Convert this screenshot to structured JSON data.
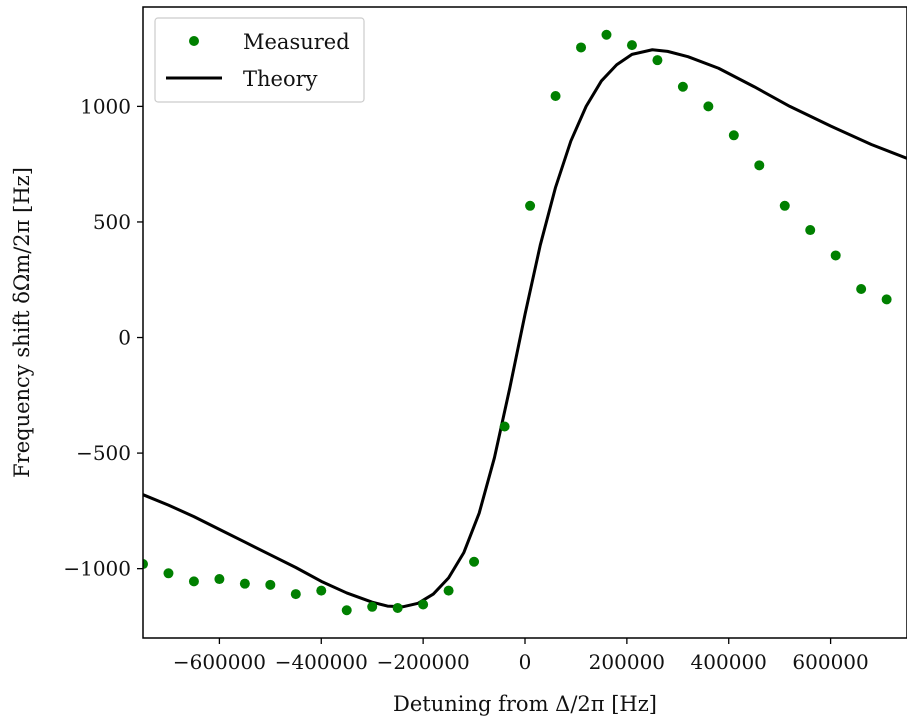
{
  "chart_data": {
    "type": "scatter",
    "title": "",
    "xlabel": "Detuning from Δ/2π [Hz]",
    "ylabel": "Frequency shift δΩm/2π [Hz]",
    "xlim": [
      -750000,
      750000
    ],
    "ylim": [
      -1300,
      1430
    ],
    "x_ticks": [
      -600000,
      -400000,
      -200000,
      0,
      200000,
      400000,
      600000
    ],
    "x_tick_labels": [
      "−600000",
      "−400000",
      "−200000",
      "0",
      "200000",
      "400000",
      "600000"
    ],
    "y_ticks": [
      -1000,
      -500,
      0,
      500,
      1000
    ],
    "y_tick_labels": [
      "−1000",
      "−500",
      "0",
      "500",
      "1000"
    ],
    "grid": false,
    "legend_position": "top-left",
    "series": [
      {
        "name": "Measured",
        "kind": "scatter",
        "color": "#008000",
        "points": [
          [
            -750000,
            -980
          ],
          [
            -700000,
            -1020
          ],
          [
            -650000,
            -1055
          ],
          [
            -600000,
            -1045
          ],
          [
            -550000,
            -1065
          ],
          [
            -500000,
            -1070
          ],
          [
            -450000,
            -1110
          ],
          [
            -400000,
            -1095
          ],
          [
            -350000,
            -1180
          ],
          [
            -300000,
            -1165
          ],
          [
            -250000,
            -1170
          ],
          [
            -200000,
            -1155
          ],
          [
            -150000,
            -1095
          ],
          [
            -100000,
            -970
          ],
          [
            -40000,
            -385
          ],
          [
            10000,
            570
          ],
          [
            60000,
            1045
          ],
          [
            110000,
            1255
          ],
          [
            160000,
            1310
          ],
          [
            210000,
            1265
          ],
          [
            260000,
            1200
          ],
          [
            310000,
            1085
          ],
          [
            360000,
            1000
          ],
          [
            410000,
            875
          ],
          [
            460000,
            745
          ],
          [
            510000,
            570
          ],
          [
            560000,
            465
          ],
          [
            610000,
            355
          ],
          [
            660000,
            210
          ],
          [
            710000,
            165
          ]
        ]
      },
      {
        "name": "Theory",
        "kind": "line",
        "color": "#000000",
        "points": [
          [
            -750000,
            -680
          ],
          [
            -700000,
            -725
          ],
          [
            -650000,
            -775
          ],
          [
            -600000,
            -830
          ],
          [
            -550000,
            -885
          ],
          [
            -500000,
            -940
          ],
          [
            -450000,
            -995
          ],
          [
            -400000,
            -1055
          ],
          [
            -350000,
            -1105
          ],
          [
            -300000,
            -1145
          ],
          [
            -270000,
            -1162
          ],
          [
            -240000,
            -1165
          ],
          [
            -210000,
            -1150
          ],
          [
            -180000,
            -1110
          ],
          [
            -150000,
            -1040
          ],
          [
            -120000,
            -930
          ],
          [
            -90000,
            -760
          ],
          [
            -60000,
            -520
          ],
          [
            -30000,
            -220
          ],
          [
            0,
            100
          ],
          [
            30000,
            400
          ],
          [
            60000,
            650
          ],
          [
            90000,
            850
          ],
          [
            120000,
            1000
          ],
          [
            150000,
            1110
          ],
          [
            180000,
            1180
          ],
          [
            210000,
            1225
          ],
          [
            250000,
            1245
          ],
          [
            280000,
            1238
          ],
          [
            320000,
            1215
          ],
          [
            380000,
            1165
          ],
          [
            450000,
            1085
          ],
          [
            520000,
            1000
          ],
          [
            600000,
            915
          ],
          [
            680000,
            835
          ],
          [
            750000,
            775
          ]
        ]
      }
    ]
  }
}
